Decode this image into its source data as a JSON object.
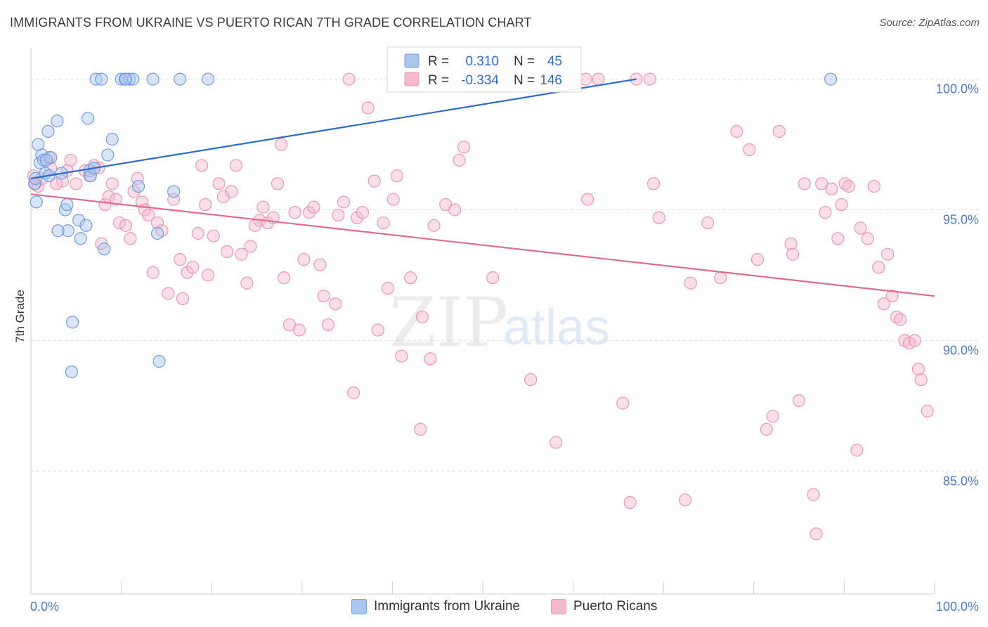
{
  "title": "IMMIGRANTS FROM UKRAINE VS PUERTO RICAN 7TH GRADE CORRELATION CHART",
  "source": "Source: ZipAtlas.com",
  "watermark": {
    "zip": "ZIP",
    "atlas": "atlas"
  },
  "colors": {
    "blue_fill": "#aac6ee",
    "blue_stroke": "#6d9ee0",
    "blue_line": "#2a6dcc",
    "pink_fill": "#f6b8cb",
    "pink_stroke": "#ee97b2",
    "pink_line": "#e06a94",
    "tick_text": "#4a7cc6"
  },
  "legend_box": {
    "rows": [
      {
        "r_label": "R =",
        "r_value": "0.310",
        "n_label": "N =",
        "n_value": "45"
      },
      {
        "r_label": "R =",
        "r_value": "-0.334",
        "n_label": "N =",
        "n_value": "146"
      }
    ]
  },
  "bottom_legend": [
    {
      "label": "Immigrants from Ukraine"
    },
    {
      "label": "Puerto Ricans"
    }
  ],
  "chart_data": {
    "type": "scatter",
    "title": "IMMIGRANTS FROM UKRAINE VS PUERTO RICAN 7TH GRADE CORRELATION CHART",
    "xlabel": "",
    "ylabel": "7th Grade",
    "xlim": [
      0,
      100
    ],
    "ylim": [
      80.3,
      101.2
    ],
    "x_tick_labels": [
      "0.0%",
      "100.0%"
    ],
    "y_ticks": [
      85,
      90,
      95,
      100
    ],
    "y_tick_labels": [
      "85.0%",
      "90.0%",
      "95.0%",
      "100.0%"
    ],
    "grid": true,
    "legend": "top-center",
    "series": [
      {
        "name": "Immigrants from Ukraine",
        "R": 0.31,
        "N": 45,
        "trend": [
          [
            0.0,
            96.2
          ],
          [
            67.0,
            100.0
          ]
        ],
        "points": [
          [
            0.4,
            96.0
          ],
          [
            0.5,
            96.2
          ],
          [
            0.6,
            95.3
          ],
          [
            0.8,
            97.5
          ],
          [
            1.0,
            96.8
          ],
          [
            1.2,
            97.1
          ],
          [
            1.4,
            96.9
          ],
          [
            1.6,
            96.4
          ],
          [
            1.9,
            98.0
          ],
          [
            2.2,
            97.0
          ],
          [
            2.9,
            98.4
          ],
          [
            3.4,
            96.4
          ],
          [
            3.8,
            95.0
          ],
          [
            4.0,
            95.2
          ],
          [
            4.1,
            94.2
          ],
          [
            4.6,
            90.7
          ],
          [
            4.5,
            88.8
          ],
          [
            3.0,
            94.2
          ],
          [
            5.3,
            94.6
          ],
          [
            5.5,
            93.9
          ],
          [
            6.1,
            94.4
          ],
          [
            6.3,
            98.5
          ],
          [
            6.5,
            96.5
          ],
          [
            6.6,
            96.3
          ],
          [
            7.0,
            96.6
          ],
          [
            7.2,
            100.0
          ],
          [
            7.8,
            100.0
          ],
          [
            8.1,
            93.5
          ],
          [
            8.5,
            97.1
          ],
          [
            9.0,
            97.7
          ],
          [
            10.0,
            100.0
          ],
          [
            10.4,
            100.0
          ],
          [
            10.9,
            100.0
          ],
          [
            11.3,
            100.0
          ],
          [
            11.9,
            95.9
          ],
          [
            13.5,
            100.0
          ],
          [
            14.0,
            94.1
          ],
          [
            14.2,
            89.2
          ],
          [
            15.8,
            95.7
          ],
          [
            16.5,
            100.0
          ],
          [
            19.6,
            100.0
          ],
          [
            10.5,
            100.0
          ],
          [
            88.5,
            100.0
          ],
          [
            1.7,
            96.9
          ],
          [
            2.0,
            96.3
          ]
        ]
      },
      {
        "name": "Puerto Ricans",
        "R": -0.334,
        "N": 146,
        "trend": [
          [
            0.0,
            95.6
          ],
          [
            100.0,
            91.7
          ]
        ],
        "points": [
          [
            0.3,
            96.3
          ],
          [
            0.5,
            96.0
          ],
          [
            0.8,
            95.9
          ],
          [
            1.2,
            96.2
          ],
          [
            2.0,
            97.0
          ],
          [
            2.2,
            96.6
          ],
          [
            3.5,
            96.1
          ],
          [
            4.0,
            96.5
          ],
          [
            4.4,
            96.9
          ],
          [
            5.0,
            96.0
          ],
          [
            6.0,
            96.5
          ],
          [
            6.5,
            96.3
          ],
          [
            7.0,
            96.7
          ],
          [
            7.5,
            96.6
          ],
          [
            7.8,
            93.7
          ],
          [
            8.2,
            95.2
          ],
          [
            8.6,
            95.5
          ],
          [
            9.0,
            96.0
          ],
          [
            9.4,
            95.4
          ],
          [
            9.8,
            94.5
          ],
          [
            10.5,
            94.4
          ],
          [
            11.0,
            93.9
          ],
          [
            11.4,
            95.7
          ],
          [
            11.8,
            96.2
          ],
          [
            12.3,
            95.3
          ],
          [
            12.6,
            95.0
          ],
          [
            13.0,
            94.8
          ],
          [
            13.5,
            92.6
          ],
          [
            14.0,
            94.5
          ],
          [
            14.5,
            94.2
          ],
          [
            15.2,
            91.8
          ],
          [
            15.8,
            95.4
          ],
          [
            16.5,
            93.1
          ],
          [
            16.8,
            91.6
          ],
          [
            17.3,
            92.6
          ],
          [
            17.9,
            92.8
          ],
          [
            18.5,
            94.1
          ],
          [
            18.9,
            96.7
          ],
          [
            19.3,
            95.2
          ],
          [
            19.6,
            92.5
          ],
          [
            20.2,
            94.0
          ],
          [
            20.8,
            96.0
          ],
          [
            21.3,
            95.5
          ],
          [
            21.7,
            93.4
          ],
          [
            22.2,
            95.7
          ],
          [
            22.7,
            96.7
          ],
          [
            23.3,
            93.3
          ],
          [
            23.9,
            92.2
          ],
          [
            24.3,
            93.6
          ],
          [
            24.8,
            94.4
          ],
          [
            25.3,
            94.6
          ],
          [
            25.7,
            95.1
          ],
          [
            26.2,
            94.5
          ],
          [
            26.8,
            94.7
          ],
          [
            27.3,
            96.0
          ],
          [
            27.7,
            97.5
          ],
          [
            28.0,
            92.4
          ],
          [
            28.6,
            90.6
          ],
          [
            29.2,
            94.9
          ],
          [
            29.7,
            90.4
          ],
          [
            30.2,
            93.1
          ],
          [
            30.8,
            94.9
          ],
          [
            31.3,
            95.1
          ],
          [
            32.0,
            92.9
          ],
          [
            32.4,
            91.7
          ],
          [
            32.9,
            90.6
          ],
          [
            33.7,
            91.4
          ],
          [
            34.0,
            94.8
          ],
          [
            34.6,
            95.3
          ],
          [
            35.2,
            100.0
          ],
          [
            35.7,
            88.0
          ],
          [
            36.1,
            94.7
          ],
          [
            36.7,
            94.9
          ],
          [
            37.3,
            98.9
          ],
          [
            38.0,
            96.1
          ],
          [
            38.4,
            90.4
          ],
          [
            39.0,
            94.5
          ],
          [
            39.5,
            92.0
          ],
          [
            40.1,
            95.4
          ],
          [
            40.5,
            96.3
          ],
          [
            41.0,
            89.4
          ],
          [
            42.0,
            92.4
          ],
          [
            43.1,
            86.6
          ],
          [
            43.3,
            90.9
          ],
          [
            44.2,
            89.3
          ],
          [
            44.6,
            94.4
          ],
          [
            45.9,
            95.2
          ],
          [
            46.9,
            95.0
          ],
          [
            47.4,
            96.9
          ],
          [
            47.9,
            97.4
          ],
          [
            49.3,
            100.0
          ],
          [
            50.1,
            100.0
          ],
          [
            51.0,
            100.0
          ],
          [
            51.1,
            92.4
          ],
          [
            55.3,
            88.5
          ],
          [
            58.1,
            86.1
          ],
          [
            59.9,
            100.0
          ],
          [
            61.4,
            100.0
          ],
          [
            61.6,
            95.4
          ],
          [
            62.8,
            100.0
          ],
          [
            65.5,
            87.6
          ],
          [
            66.3,
            83.8
          ],
          [
            67.0,
            100.0
          ],
          [
            68.5,
            100.0
          ],
          [
            68.9,
            96.0
          ],
          [
            69.5,
            94.7
          ],
          [
            72.4,
            83.9
          ],
          [
            73.0,
            92.2
          ],
          [
            74.9,
            94.5
          ],
          [
            76.3,
            92.4
          ],
          [
            78.1,
            98.0
          ],
          [
            79.5,
            97.3
          ],
          [
            80.4,
            93.1
          ],
          [
            81.4,
            86.6
          ],
          [
            82.1,
            87.1
          ],
          [
            82.8,
            98.0
          ],
          [
            84.1,
            93.7
          ],
          [
            84.3,
            93.3
          ],
          [
            85.0,
            87.7
          ],
          [
            85.6,
            96.0
          ],
          [
            86.6,
            84.1
          ],
          [
            86.9,
            82.6
          ],
          [
            87.5,
            96.0
          ],
          [
            87.9,
            94.9
          ],
          [
            88.6,
            95.8
          ],
          [
            89.3,
            93.9
          ],
          [
            89.7,
            95.2
          ],
          [
            90.1,
            96.0
          ],
          [
            90.5,
            95.9
          ],
          [
            91.4,
            85.8
          ],
          [
            91.8,
            94.3
          ],
          [
            92.6,
            93.9
          ],
          [
            93.3,
            95.9
          ],
          [
            93.8,
            92.8
          ],
          [
            94.4,
            91.4
          ],
          [
            94.8,
            93.3
          ],
          [
            95.3,
            91.7
          ],
          [
            95.8,
            90.9
          ],
          [
            96.2,
            90.8
          ],
          [
            96.7,
            90.0
          ],
          [
            97.2,
            89.9
          ],
          [
            97.8,
            90.0
          ],
          [
            98.2,
            88.9
          ],
          [
            98.5,
            88.5
          ],
          [
            99.2,
            87.3
          ],
          [
            2.8,
            96.0
          ]
        ]
      }
    ]
  }
}
